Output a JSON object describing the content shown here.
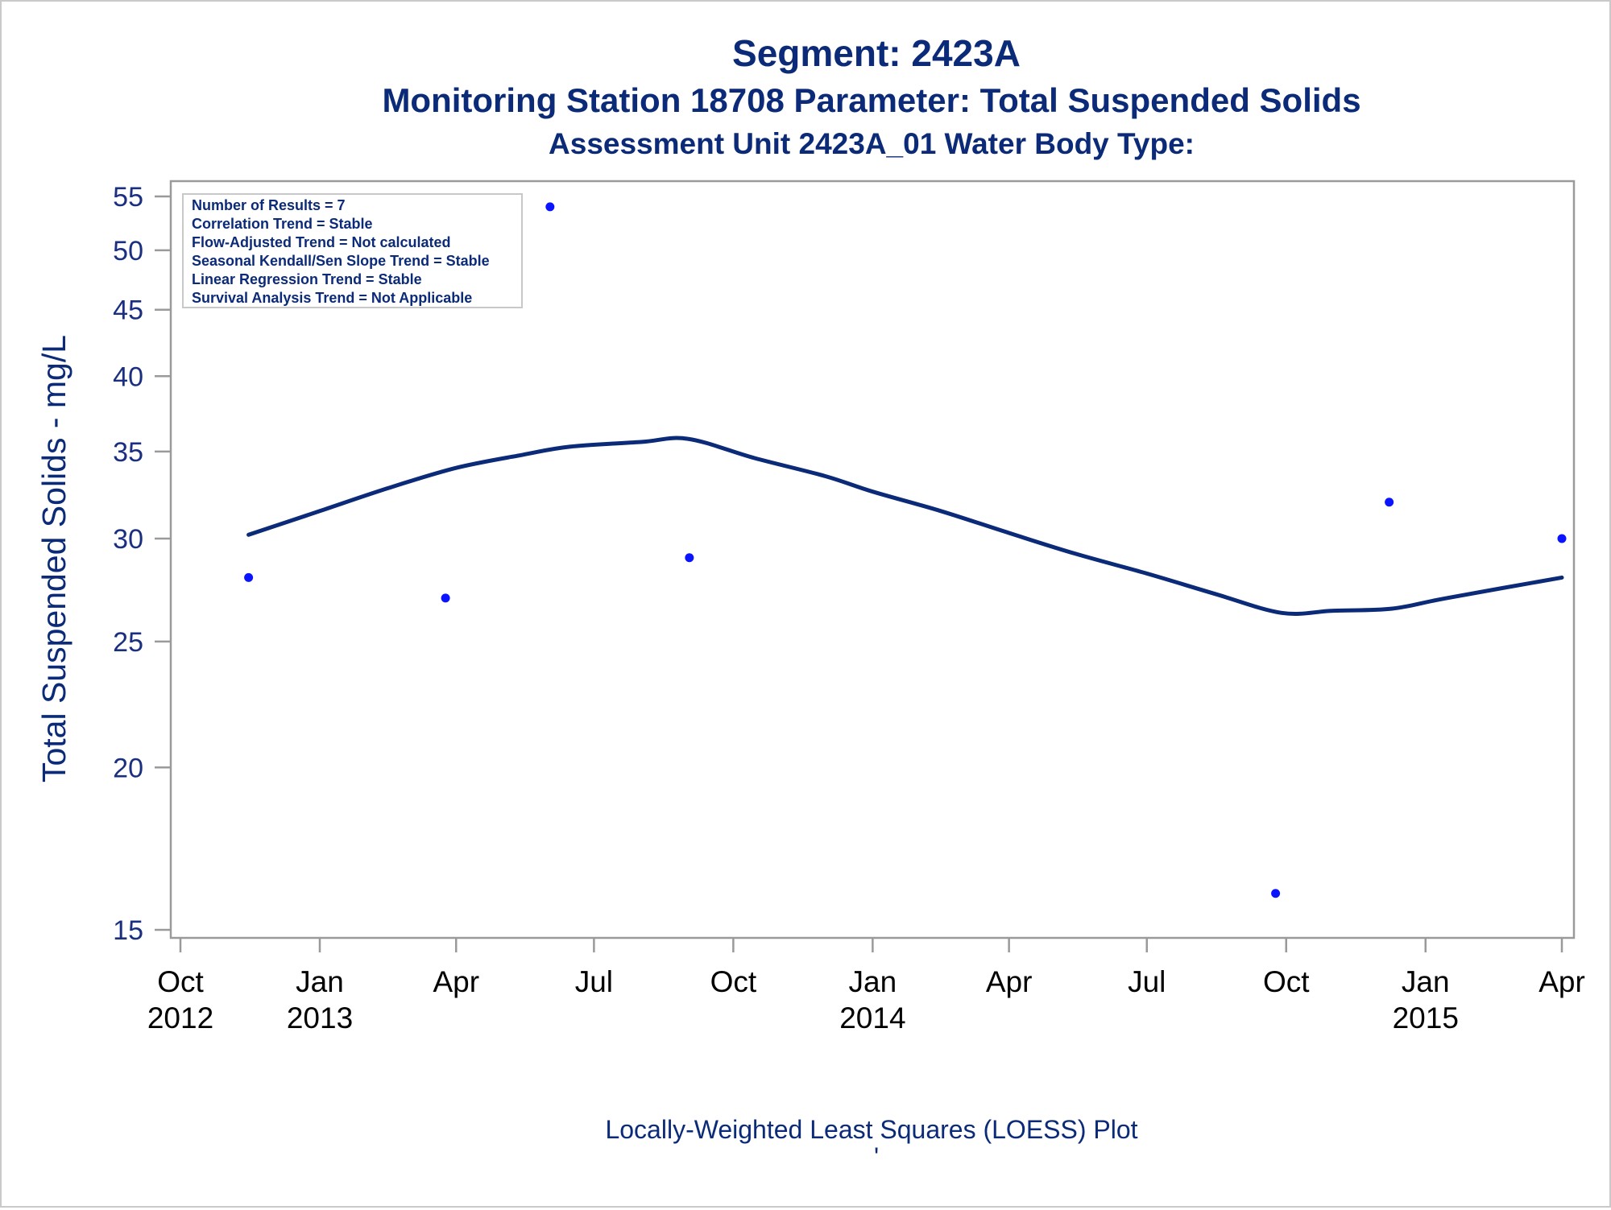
{
  "titles": {
    "line1": "Segment: 2423A",
    "line2": "Monitoring Station 18708 Parameter: Total Suspended Solids",
    "line3": "Assessment Unit 2423A_01   Water Body Type:"
  },
  "footnote": "Locally-Weighted Least Squares (LOESS) Plot",
  "footnote_mark": "'",
  "stats_box": [
    "Number of Results = 7",
    "Correlation Trend = Stable",
    "Flow-Adjusted Trend = Not calculated",
    "Seasonal Kendall/Sen Slope Trend = Stable",
    "Linear Regression Trend = Stable",
    "Survival Analysis Trend = Not Applicable"
  ],
  "colors": {
    "points": "#0a14ff",
    "loess": "#0b2a78",
    "axis": "#9a9a9a",
    "text": "#0b2a78"
  },
  "chart_data": {
    "type": "scatter",
    "title": "Segment: 2423A",
    "ylabel": "Total Suspended Solids - mg/L",
    "xlabel": "",
    "y_scale": "log",
    "ylim": [
      15,
      55
    ],
    "xlim": [
      "2012-10-01",
      "2015-04-01"
    ],
    "grid": false,
    "yticks": [
      15,
      20,
      25,
      30,
      35,
      40,
      45,
      50,
      55
    ],
    "xticks": [
      {
        "date": "2012-10-01",
        "label": [
          "Oct",
          "2012"
        ]
      },
      {
        "date": "2013-01-01",
        "label": [
          "Jan",
          "2013"
        ]
      },
      {
        "date": "2013-04-01",
        "label": [
          "Apr",
          ""
        ]
      },
      {
        "date": "2013-07-01",
        "label": [
          "Jul",
          ""
        ]
      },
      {
        "date": "2013-10-01",
        "label": [
          "Oct",
          ""
        ]
      },
      {
        "date": "2014-01-01",
        "label": [
          "Jan",
          "2014"
        ]
      },
      {
        "date": "2014-04-01",
        "label": [
          "Apr",
          ""
        ]
      },
      {
        "date": "2014-07-01",
        "label": [
          "Jul",
          ""
        ]
      },
      {
        "date": "2014-10-01",
        "label": [
          "Oct",
          ""
        ]
      },
      {
        "date": "2015-01-01",
        "label": [
          "Jan",
          "2015"
        ]
      },
      {
        "date": "2015-04-01",
        "label": [
          "Apr",
          ""
        ]
      }
    ],
    "series": [
      {
        "type": "scatter",
        "points": [
          {
            "x": "2012-11-15",
            "y": 28
          },
          {
            "x": "2013-03-25",
            "y": 27
          },
          {
            "x": "2013-06-02",
            "y": 54
          },
          {
            "x": "2013-09-02",
            "y": 29
          },
          {
            "x": "2014-09-24",
            "y": 16
          },
          {
            "x": "2014-12-08",
            "y": 32
          },
          {
            "x": "2015-04-01",
            "y": 30
          }
        ]
      },
      {
        "type": "line",
        "points": [
          {
            "x": "2012-11-15",
            "y": 30.2
          },
          {
            "x": "2013-01-01",
            "y": 31.5
          },
          {
            "x": "2013-02-15",
            "y": 32.8
          },
          {
            "x": "2013-04-01",
            "y": 34.0
          },
          {
            "x": "2013-05-15",
            "y": 34.8
          },
          {
            "x": "2013-06-15",
            "y": 35.3
          },
          {
            "x": "2013-08-01",
            "y": 35.6
          },
          {
            "x": "2013-09-01",
            "y": 35.8
          },
          {
            "x": "2013-10-15",
            "y": 34.6
          },
          {
            "x": "2013-12-01",
            "y": 33.5
          },
          {
            "x": "2014-01-01",
            "y": 32.6
          },
          {
            "x": "2014-02-15",
            "y": 31.5
          },
          {
            "x": "2014-04-01",
            "y": 30.3
          },
          {
            "x": "2014-05-15",
            "y": 29.2
          },
          {
            "x": "2014-07-01",
            "y": 28.2
          },
          {
            "x": "2014-08-15",
            "y": 27.2
          },
          {
            "x": "2014-09-28",
            "y": 26.3
          },
          {
            "x": "2014-11-01",
            "y": 26.4
          },
          {
            "x": "2014-12-10",
            "y": 26.5
          },
          {
            "x": "2015-01-15",
            "y": 27.0
          },
          {
            "x": "2015-04-01",
            "y": 28.0
          }
        ]
      }
    ]
  }
}
